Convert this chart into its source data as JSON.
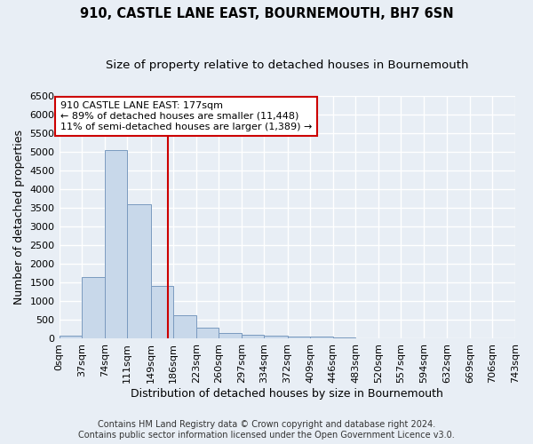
{
  "title": "910, CASTLE LANE EAST, BOURNEMOUTH, BH7 6SN",
  "subtitle": "Size of property relative to detached houses in Bournemouth",
  "xlabel": "Distribution of detached houses by size in Bournemouth",
  "ylabel": "Number of detached properties",
  "footer_line1": "Contains HM Land Registry data © Crown copyright and database right 2024.",
  "footer_line2": "Contains public sector information licensed under the Open Government Licence v3.0.",
  "bin_edges": [
    0,
    37,
    74,
    111,
    149,
    186,
    223,
    260,
    297,
    334,
    372,
    409,
    446,
    483,
    520,
    557,
    594,
    632,
    669,
    706,
    743
  ],
  "bar_heights": [
    75,
    1650,
    5060,
    3600,
    1410,
    620,
    290,
    150,
    100,
    75,
    65,
    50,
    30,
    0,
    0,
    0,
    0,
    0,
    0,
    0
  ],
  "bar_color": "#c8d8ea",
  "bar_edge_color": "#7a9abf",
  "property_size": 177,
  "red_line_color": "#cc0000",
  "annotation_text_line1": "910 CASTLE LANE EAST: 177sqm",
  "annotation_text_line2": "← 89% of detached houses are smaller (11,448)",
  "annotation_text_line3": "11% of semi-detached houses are larger (1,389) →",
  "annotation_box_color": "#cc0000",
  "ylim": [
    0,
    6500
  ],
  "yticks": [
    0,
    500,
    1000,
    1500,
    2000,
    2500,
    3000,
    3500,
    4000,
    4500,
    5000,
    5500,
    6000,
    6500
  ],
  "background_color": "#e8eef5",
  "grid_color": "#ffffff",
  "title_fontsize": 10.5,
  "subtitle_fontsize": 9.5,
  "axis_label_fontsize": 9,
  "tick_fontsize": 8,
  "footer_fontsize": 7
}
